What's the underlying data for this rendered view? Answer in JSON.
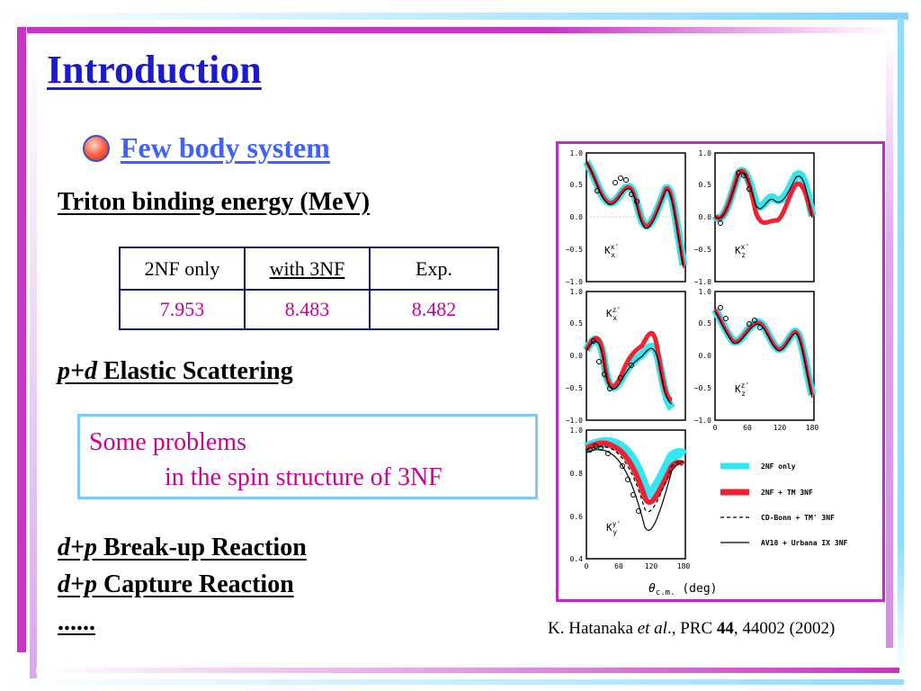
{
  "title": "Introduction",
  "bullet": {
    "label": "Few body system"
  },
  "triton": {
    "heading": "Triton binding energy (MeV)",
    "table": {
      "headers": [
        "2NF only",
        "with 3NF",
        "Exp."
      ],
      "values": [
        "7.953",
        "8.483",
        "8.482"
      ]
    }
  },
  "pd": {
    "italic": "p+d",
    "rest": " Elastic Scattering"
  },
  "problems": {
    "line1": "Some problems",
    "line2": "in the spin structure of 3NF"
  },
  "breakup": {
    "italic": "d+p",
    "rest": " Break-up Reaction"
  },
  "capture": {
    "italic": "d+p",
    "rest": " Capture Reaction"
  },
  "ellipsis": "......",
  "citation": {
    "author": "K. Hatanaka ",
    "etal": "et al",
    "journal": "., PRC ",
    "volume": "44",
    "rest": ", 44002 (2002)"
  },
  "colors": {
    "title": "#1a1ad0",
    "bullet_text": "#3f62ff",
    "magenta": "#cc0099",
    "frame": "#c02ac8",
    "cyan": "#33e6f0",
    "red": "#ee2233"
  },
  "figure": {
    "panels": [
      {
        "label_main": "K",
        "label_sup": "x'",
        "label_sub": "x",
        "y_ticks": [
          "1.0",
          "0.5",
          "0.0",
          "−0.5",
          "−1.0"
        ]
      },
      {
        "label_main": "K",
        "label_sup": "x'",
        "label_sub": "z",
        "y_ticks": [
          "1.0",
          "0.5",
          "0.0",
          "−0.5",
          "−1.0"
        ]
      },
      {
        "label_main": "K",
        "label_sup": "z'",
        "label_sub": "x",
        "y_ticks": [
          "1.0",
          "0.5",
          "0.0",
          "−0.5",
          "−1.0"
        ]
      },
      {
        "label_main": "K",
        "label_sup": "z'",
        "label_sub": "z",
        "y_ticks": [
          "1.0",
          "0.5",
          "0.0",
          "−0.5",
          "−1.0"
        ],
        "x_ticks": [
          "0",
          "60",
          "120",
          "180"
        ]
      },
      {
        "label_main": "K",
        "label_sup": "y'",
        "label_sub": "y",
        "y_ticks": [
          "1.0",
          "0.8",
          "0.6",
          "0.4"
        ],
        "x_ticks": [
          "0",
          "60",
          "120",
          "180"
        ]
      }
    ],
    "legend": [
      "2NF only",
      "2NF + TM 3NF",
      "CD-Bonn + TM' 3NF",
      "AV18 + Urbana IX 3NF"
    ],
    "x_axis_label": {
      "theta": "θ",
      "sub": "c.m.",
      "unit": " (deg)"
    }
  }
}
